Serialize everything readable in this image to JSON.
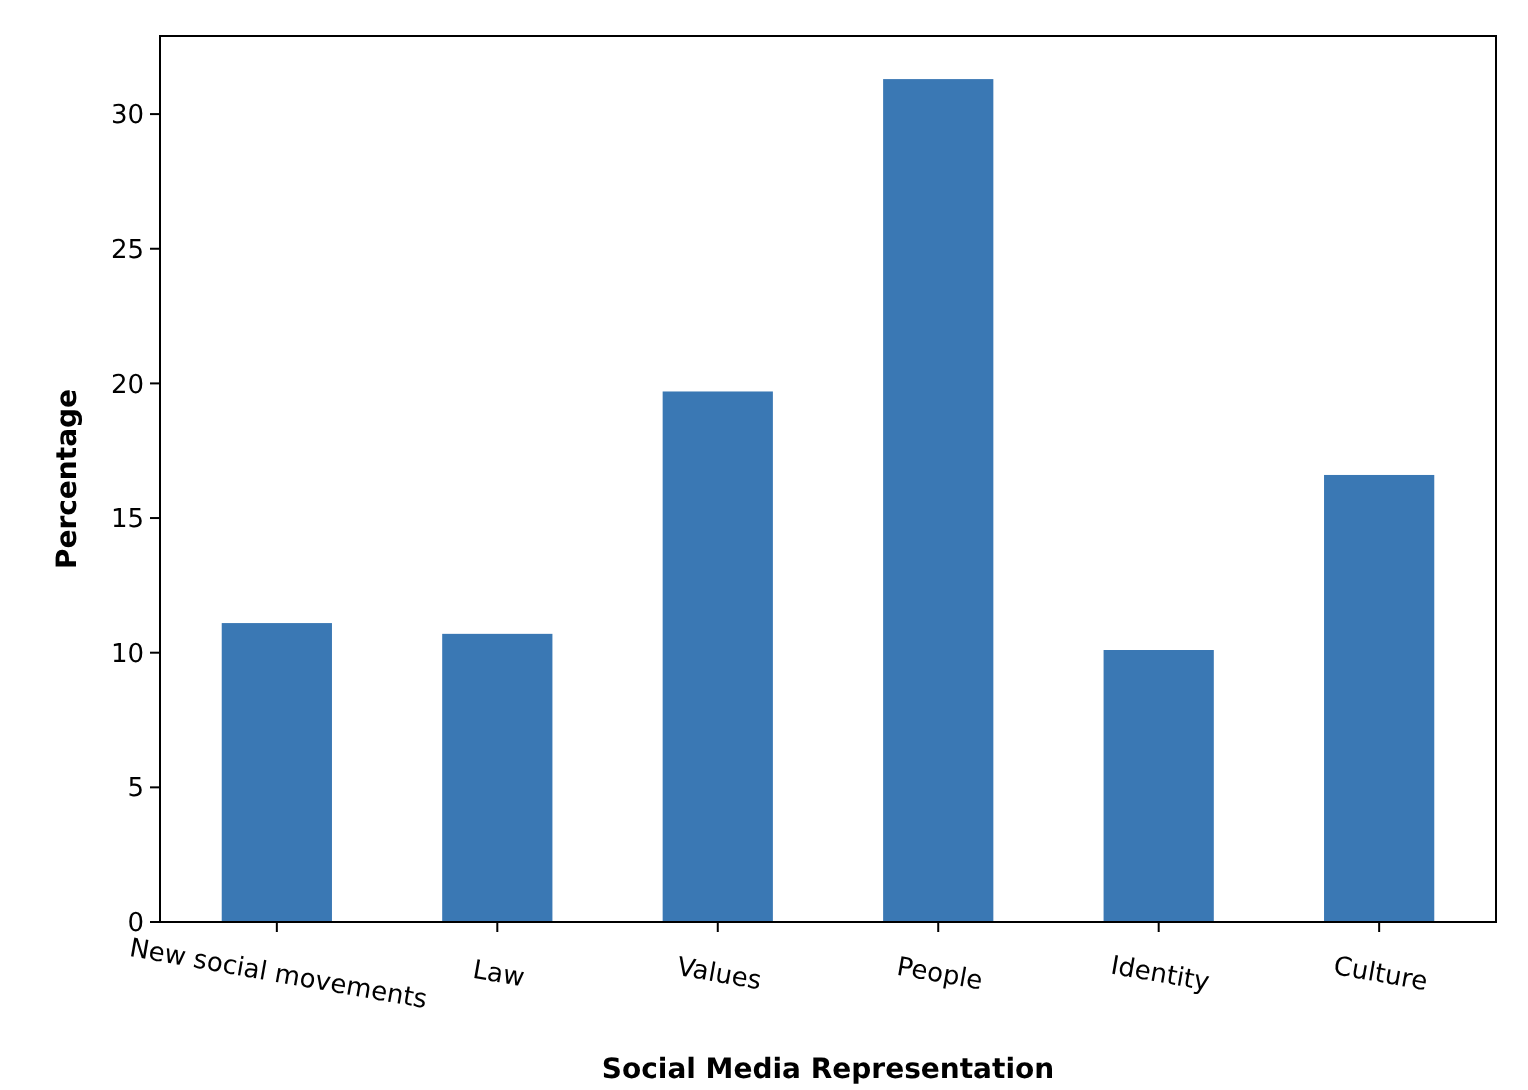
{
  "chart_data": {
    "type": "bar",
    "xlabel": "Social Media Representation",
    "ylabel": "Percentage",
    "categories": [
      "New social movements",
      "Law",
      "Values",
      "People",
      "Identity",
      "Culture"
    ],
    "values": [
      11.1,
      10.7,
      19.7,
      31.3,
      10.1,
      16.6
    ],
    "color": "#3a78b4",
    "ylim": [
      0,
      32.9
    ],
    "yticks": [
      0,
      5,
      10,
      15,
      20,
      25,
      30
    ],
    "grid": false
  }
}
